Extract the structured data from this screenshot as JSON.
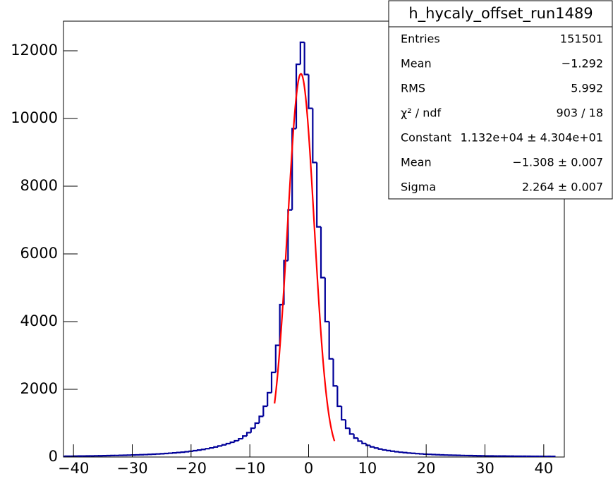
{
  "chart_data": {
    "type": "histogram",
    "title": "h_hycaly_offset_run1489",
    "color": "#000099",
    "bins": [
      -42,
      -41.3,
      -40.6,
      -39.9,
      -39.2,
      -38.5,
      -37.8,
      -37.1,
      -36.4,
      -35.7,
      -35,
      -34.3,
      -33.6,
      -32.9,
      -32.2,
      -31.5,
      -30.8,
      -30.1,
      -29.4,
      -28.7,
      -28,
      -27.3,
      -26.6,
      -25.9,
      -25.2,
      -24.5,
      -23.8,
      -23.1,
      -22.4,
      -21.7,
      -21,
      -20.3,
      -19.6,
      -18.9,
      -18.2,
      -17.5,
      -16.8,
      -16.1,
      -15.4,
      -14.7,
      -14,
      -13.3,
      -12.6,
      -11.9,
      -11.2,
      -10.5,
      -9.8,
      -9.1,
      -8.4,
      -7.7,
      -7,
      -6.3,
      -5.6,
      -4.9,
      -4.2,
      -3.5,
      -2.8,
      -2.1,
      -1.4,
      -0.7,
      0,
      0.7,
      1.4,
      2.1,
      2.8,
      3.5,
      4.2,
      4.9,
      5.6,
      6.3,
      7,
      7.7,
      8.4,
      9.1,
      9.8,
      10.5,
      11.2,
      11.9,
      12.6,
      13.3,
      14,
      14.7,
      15.4,
      16.1,
      16.8,
      17.5,
      18.2,
      18.9,
      19.6,
      20.3,
      21,
      21.7,
      22.4,
      23.1,
      23.8,
      24.5,
      25.2,
      25.9,
      26.6,
      27.3,
      28,
      28.7,
      29.4,
      30.1,
      30.8,
      31.5,
      32.2,
      32.9,
      33.6,
      34.3,
      35,
      35.7,
      36.4,
      37.1,
      37.8,
      38.5,
      39.2,
      39.9,
      40.6,
      41.3,
      42
    ],
    "values": [
      22,
      25,
      24,
      27,
      28,
      30,
      31,
      33,
      35,
      36,
      39,
      41,
      44,
      46,
      49,
      52,
      56,
      60,
      64,
      68,
      72,
      78,
      83,
      90,
      97,
      104,
      113,
      122,
      133,
      144,
      157,
      171,
      187,
      205,
      224,
      246,
      270,
      297,
      327,
      360,
      396,
      436,
      480,
      540,
      620,
      720,
      850,
      1000,
      1200,
      1500,
      1900,
      2500,
      3300,
      4500,
      5800,
      7300,
      9700,
      11600,
      12250,
      11300,
      10300,
      8700,
      6800,
      5300,
      4000,
      2900,
      2100,
      1500,
      1100,
      850,
      680,
      560,
      470,
      400,
      345,
      300,
      265,
      235,
      210,
      190,
      172,
      156,
      142,
      130,
      119,
      109,
      100,
      92,
      85,
      79,
      73,
      68,
      63,
      59,
      55,
      52,
      49,
      46,
      43,
      41,
      39,
      37,
      35,
      33,
      32,
      30,
      29,
      28,
      27,
      26,
      25,
      24,
      23,
      23,
      22,
      21,
      21,
      20,
      20,
      19
    ],
    "fit": {
      "color": "#ff0000",
      "constant": 11320,
      "mean": -1.308,
      "sigma": 2.264,
      "range": [
        -5.8,
        4.4
      ]
    },
    "xlim": [
      -41.7,
      43.5
    ],
    "ylim": [
      0,
      12875
    ],
    "xticks": [
      {
        "value": -40,
        "label": "−40"
      },
      {
        "value": -30,
        "label": "−30"
      },
      {
        "value": -20,
        "label": "−20"
      },
      {
        "value": -10,
        "label": "−10"
      },
      0,
      10,
      20,
      30,
      40
    ],
    "yticks": [
      0,
      2000,
      4000,
      6000,
      8000,
      10000,
      12000
    ],
    "stats": [
      {
        "label": "Entries",
        "value": "151501"
      },
      {
        "label": "Mean",
        "value": "−1.292"
      },
      {
        "label": "RMS",
        "value": "5.992"
      },
      {
        "label": "χ² / ndf",
        "value": "903 / 18"
      },
      {
        "label": "Constant",
        "value": "1.132e+04 ± 4.304e+01"
      },
      {
        "label": "Mean",
        "value": "−1.308 ± 0.007"
      },
      {
        "label": "Sigma",
        "value": "2.264 ± 0.007"
      }
    ]
  }
}
